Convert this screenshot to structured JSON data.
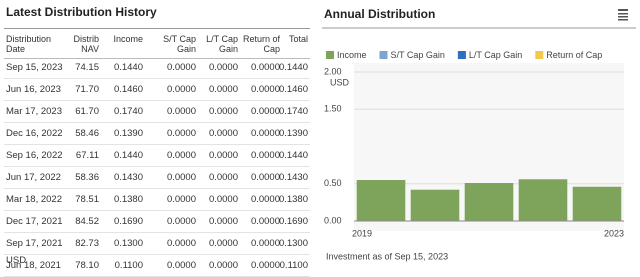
{
  "table": {
    "title": "Latest Distribution History",
    "headers": [
      "Distribution Date",
      "Distrib NAV",
      "Income",
      "S/T Cap Gain",
      "L/T Cap Gain",
      "Return of Cap",
      "Total"
    ],
    "rows": [
      [
        "Sep 15, 2023",
        "74.15",
        "0.1440",
        "0.0000",
        "0.0000",
        "0.0000",
        "0.1440"
      ],
      [
        "Jun 16, 2023",
        "71.70",
        "0.1460",
        "0.0000",
        "0.0000",
        "0.0000",
        "0.1460"
      ],
      [
        "Mar 17, 2023",
        "61.70",
        "0.1740",
        "0.0000",
        "0.0000",
        "0.0000",
        "0.1740"
      ],
      [
        "Dec 16, 2022",
        "58.46",
        "0.1390",
        "0.0000",
        "0.0000",
        "0.0000",
        "0.1390"
      ],
      [
        "Sep 16, 2022",
        "67.11",
        "0.1440",
        "0.0000",
        "0.0000",
        "0.0000",
        "0.1440"
      ],
      [
        "Jun 17, 2022",
        "58.36",
        "0.1430",
        "0.0000",
        "0.0000",
        "0.0000",
        "0.1430"
      ],
      [
        "Mar 18, 2022",
        "78.51",
        "0.1380",
        "0.0000",
        "0.0000",
        "0.0000",
        "0.1380"
      ],
      [
        "Dec 17, 2021",
        "84.52",
        "0.1690",
        "0.0000",
        "0.0000",
        "0.0000",
        "0.1690"
      ],
      [
        "Sep 17, 2021",
        "82.73",
        "0.1300",
        "0.0000",
        "0.0000",
        "0.0000",
        "0.1300"
      ],
      [
        "Jun 18, 2021",
        "78.10",
        "0.1100",
        "0.0000",
        "0.0000",
        "0.0000",
        "0.1100"
      ]
    ],
    "footnote": "USD"
  },
  "chart_data": {
    "type": "bar",
    "title": "Annual Distribution",
    "legend": [
      {
        "name": "Income",
        "color": "#7ea35a"
      },
      {
        "name": "S/T Cap Gain",
        "color": "#7ea4d6"
      },
      {
        "name": "L/T Cap Gain",
        "color": "#2f6fc0"
      },
      {
        "name": "Return of Cap",
        "color": "#f2c94c"
      }
    ],
    "categories": [
      "2019",
      null,
      null,
      null,
      "2023"
    ],
    "values": [
      0.55,
      0.42,
      0.51,
      0.56,
      0.46
    ],
    "color": "#7ea35a",
    "ylim": [
      0,
      2
    ],
    "yticks": [
      {
        "value": 0,
        "label": "0.00"
      },
      {
        "value": 0.5,
        "label": "0.50"
      },
      {
        "value": 1.5,
        "label": "1.50"
      },
      {
        "value": 2,
        "label": "2.00"
      }
    ],
    "y_unit": "USD",
    "footnote": "Investment as of Sep 15, 2023"
  }
}
